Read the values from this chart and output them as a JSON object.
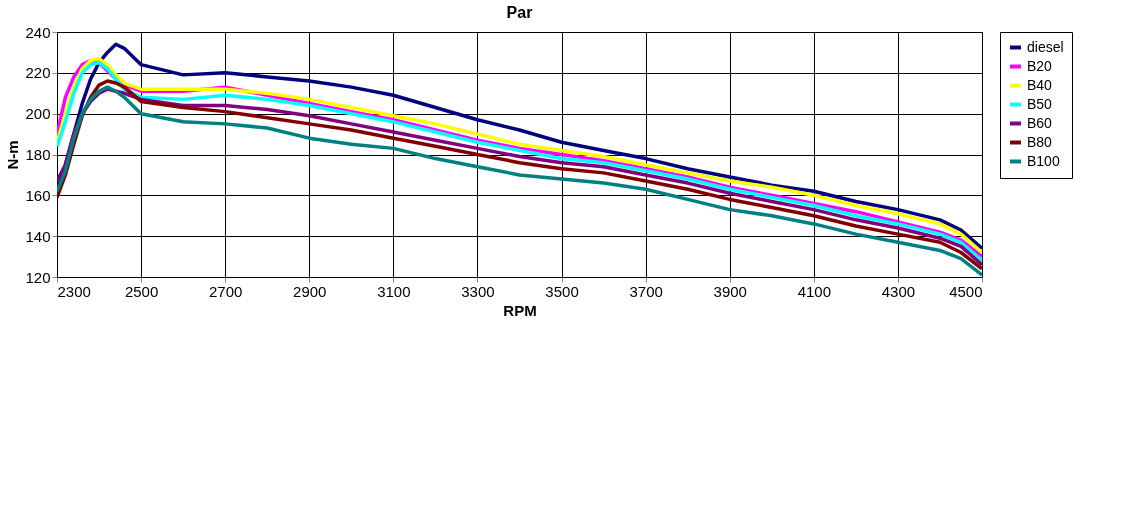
{
  "chart_data": {
    "type": "line",
    "title": "Par",
    "xlabel": "RPM",
    "ylabel": "N-m",
    "x": [
      2300,
      2320,
      2340,
      2360,
      2380,
      2400,
      2420,
      2440,
      2460,
      2500,
      2600,
      2700,
      2800,
      2900,
      3000,
      3100,
      3200,
      3300,
      3400,
      3500,
      3600,
      3700,
      3800,
      3900,
      4000,
      4100,
      4200,
      4300,
      4400,
      4450,
      4500
    ],
    "xlim": [
      2300,
      4500
    ],
    "xticks": [
      2300,
      2500,
      2700,
      2900,
      3100,
      3300,
      3500,
      3700,
      3900,
      4100,
      4300,
      4500
    ],
    "ylim": [
      120,
      240
    ],
    "yticks": [
      120,
      140,
      160,
      180,
      200,
      220,
      240
    ],
    "grid": true,
    "legend": "right",
    "series": [
      {
        "name": "diesel",
        "color": "#000080",
        "values": [
          162,
          175,
          190,
          205,
          217,
          225,
          230,
          234,
          232,
          224,
          219,
          220,
          218,
          216,
          213,
          209,
          203,
          197,
          192,
          186,
          182,
          178,
          173,
          169,
          165,
          162,
          157,
          153,
          148,
          143,
          134
        ]
      },
      {
        "name": "B20",
        "color": "#ff00ff",
        "values": [
          190,
          208,
          218,
          224,
          226,
          225,
          221,
          217,
          214,
          211,
          211,
          213,
          209,
          205,
          201,
          197,
          192,
          187,
          183,
          180,
          177,
          173,
          169,
          164,
          160,
          156,
          152,
          147,
          142,
          138,
          130
        ]
      },
      {
        "name": "B40",
        "color": "#ffff00",
        "values": [
          186,
          200,
          213,
          222,
          226,
          227,
          224,
          219,
          215,
          212,
          212,
          212,
          210,
          207,
          203,
          199,
          195,
          190,
          185,
          182,
          179,
          175,
          171,
          167,
          164,
          160,
          155,
          151,
          146,
          141,
          132
        ]
      },
      {
        "name": "B50",
        "color": "#00ffff",
        "values": [
          184,
          196,
          210,
          220,
          224,
          225,
          222,
          217,
          212,
          208,
          207,
          209,
          207,
          204,
          200,
          196,
          191,
          186,
          182,
          178,
          176,
          172,
          168,
          163,
          159,
          155,
          150,
          146,
          141,
          137,
          128
        ]
      },
      {
        "name": "B60",
        "color": "#800080",
        "values": [
          167,
          175,
          190,
          200,
          206,
          210,
          212,
          211,
          210,
          207,
          204,
          204,
          202,
          199,
          195,
          191,
          187,
          183,
          179,
          176,
          174,
          170,
          166,
          161,
          157,
          153,
          148,
          144,
          139,
          135,
          126
        ]
      },
      {
        "name": "B80",
        "color": "#800000",
        "values": [
          159,
          170,
          185,
          199,
          208,
          214,
          216,
          215,
          213,
          206,
          203,
          201,
          198,
          195,
          192,
          188,
          184,
          180,
          176,
          173,
          171,
          167,
          163,
          158,
          154,
          150,
          145,
          141,
          137,
          132,
          124
        ]
      },
      {
        "name": "B100",
        "color": "#008080",
        "values": [
          162,
          172,
          188,
          200,
          207,
          211,
          213,
          211,
          208,
          200,
          196,
          195,
          193,
          188,
          185,
          183,
          178,
          174,
          170,
          168,
          166,
          163,
          158,
          153,
          150,
          146,
          141,
          137,
          133,
          129,
          121
        ]
      }
    ]
  }
}
